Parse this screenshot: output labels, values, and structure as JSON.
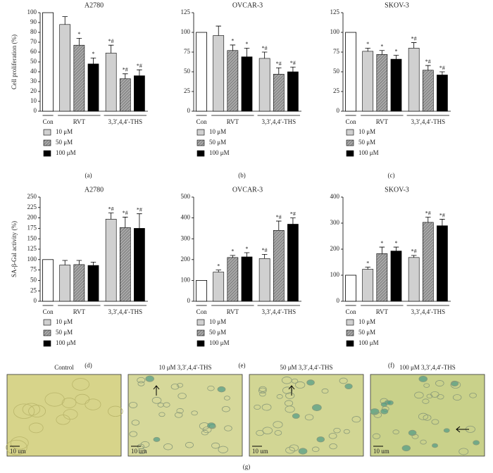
{
  "chart_data": [
    {
      "type": "bar",
      "title": "A2780",
      "ylabel": "Cell proliferation (%)",
      "panel_label": "(a)",
      "control": {
        "label": "Con",
        "value": 100,
        "color": "#ffffff"
      },
      "categories": [
        "RVT",
        "3,3′,4,4′-THS"
      ],
      "series": [
        {
          "name": "10 μM",
          "color": "#d0d0d0",
          "values": [
            88,
            59
          ],
          "errors": [
            8,
            8
          ],
          "significance": [
            null,
            "*#"
          ]
        },
        {
          "name": "50 μM",
          "color": "hatch",
          "values": [
            67,
            33
          ],
          "errors": [
            7,
            5
          ],
          "significance": [
            "*",
            "*#"
          ]
        },
        {
          "name": "100 μM",
          "color": "#000000",
          "values": [
            48,
            36
          ],
          "errors": [
            6,
            6
          ],
          "significance": [
            "*",
            "*#"
          ]
        }
      ],
      "ylim": [
        0,
        100
      ],
      "yticks": [
        0,
        10,
        20,
        30,
        40,
        50,
        60,
        70,
        80,
        90,
        100
      ]
    },
    {
      "type": "bar",
      "title": "OVCAR-3",
      "panel_label": "(b)",
      "control": {
        "label": "Con",
        "value": 100,
        "color": "#ffffff"
      },
      "categories": [
        "RVT",
        "3,3′,4,4′-THS"
      ],
      "series": [
        {
          "name": "10 μM",
          "color": "#d0d0d0",
          "values": [
            96,
            67
          ],
          "errors": [
            12,
            8
          ],
          "significance": [
            null,
            "*#"
          ]
        },
        {
          "name": "50 μM",
          "color": "hatch",
          "values": [
            77,
            47
          ],
          "errors": [
            7,
            8
          ],
          "significance": [
            "*",
            "*#"
          ]
        },
        {
          "name": "100 μM",
          "color": "#000000",
          "values": [
            69,
            50
          ],
          "errors": [
            11,
            6
          ],
          "significance": [
            "*",
            "*#"
          ]
        }
      ],
      "ylim": [
        0,
        125
      ],
      "yticks": [
        0,
        25,
        50,
        75,
        100,
        125
      ]
    },
    {
      "type": "bar",
      "title": "SKOV-3",
      "panel_label": "(c)",
      "control": {
        "label": "Con",
        "value": 100,
        "color": "#ffffff"
      },
      "categories": [
        "RVT",
        "3,3′,4,4′-THS"
      ],
      "series": [
        {
          "name": "10 μM",
          "color": "#d0d0d0",
          "values": [
            76,
            80
          ],
          "errors": [
            4,
            7
          ],
          "significance": [
            "*",
            "*#"
          ]
        },
        {
          "name": "50 μM",
          "color": "hatch",
          "values": [
            72,
            52
          ],
          "errors": [
            5,
            6
          ],
          "significance": [
            "*",
            "*#"
          ]
        },
        {
          "name": "100 μM",
          "color": "#000000",
          "values": [
            66,
            46
          ],
          "errors": [
            5,
            4
          ],
          "significance": [
            "*",
            "*#"
          ]
        }
      ],
      "ylim": [
        0,
        125
      ],
      "yticks": [
        0,
        25,
        50,
        75,
        100,
        125
      ]
    },
    {
      "type": "bar",
      "title": "A2780",
      "ylabel": "SA-β-Gal activity (%)",
      "panel_label": "(d)",
      "control": {
        "label": "Con",
        "value": 100,
        "color": "#ffffff"
      },
      "categories": [
        "RVT",
        "3,3′,4,4′-THS"
      ],
      "series": [
        {
          "name": "10 μM",
          "color": "#d0d0d0",
          "values": [
            87,
            197
          ],
          "errors": [
            11,
            15
          ],
          "significance": [
            null,
            "*#"
          ]
        },
        {
          "name": "50 μM",
          "color": "hatch",
          "values": [
            88,
            177
          ],
          "errors": [
            10,
            25
          ],
          "significance": [
            null,
            "*#"
          ]
        },
        {
          "name": "100 μM",
          "color": "#000000",
          "values": [
            86,
            175
          ],
          "errors": [
            8,
            35
          ],
          "significance": [
            null,
            "*#"
          ]
        }
      ],
      "ylim": [
        0,
        250
      ],
      "yticks": [
        0,
        25,
        50,
        75,
        100,
        125,
        150,
        175,
        200,
        225,
        250
      ]
    },
    {
      "type": "bar",
      "title": "OVCAR-3",
      "panel_label": "(e)",
      "control": {
        "label": "Con",
        "value": 100,
        "color": "#ffffff"
      },
      "categories": [
        "RVT",
        "3,3′,4,4′-THS"
      ],
      "series": [
        {
          "name": "10 μM",
          "color": "#d0d0d0",
          "values": [
            140,
            205
          ],
          "errors": [
            10,
            20
          ],
          "significance": [
            "*",
            "*#"
          ]
        },
        {
          "name": "50 μM",
          "color": "hatch",
          "values": [
            210,
            340
          ],
          "errors": [
            10,
            45
          ],
          "significance": [
            "*",
            "*#"
          ]
        },
        {
          "name": "100 μM",
          "color": "#000000",
          "values": [
            213,
            370
          ],
          "errors": [
            20,
            30
          ],
          "significance": [
            "*",
            "*#"
          ]
        }
      ],
      "ylim": [
        0,
        500
      ],
      "yticks": [
        0,
        100,
        200,
        300,
        400,
        500
      ]
    },
    {
      "type": "bar",
      "title": "SKOV-3",
      "panel_label": "(f)",
      "control": {
        "label": "Con",
        "value": 100,
        "color": "#ffffff"
      },
      "categories": [
        "RVT",
        "3,3′,4,4′-THS"
      ],
      "series": [
        {
          "name": "10 μM",
          "color": "#d0d0d0",
          "values": [
            123,
            168
          ],
          "errors": [
            8,
            8
          ],
          "significance": [
            "*",
            "*#"
          ]
        },
        {
          "name": "50 μM",
          "color": "hatch",
          "values": [
            183,
            303
          ],
          "errors": [
            25,
            20
          ],
          "significance": [
            "*",
            "*#"
          ]
        },
        {
          "name": "100 μM",
          "color": "#000000",
          "values": [
            193,
            290
          ],
          "errors": [
            15,
            25
          ],
          "significance": [
            "*",
            "*#"
          ]
        }
      ],
      "ylim": [
        0,
        400
      ],
      "yticks": [
        0,
        100,
        200,
        300,
        400
      ]
    }
  ],
  "micrographs": {
    "panel_label": "(g)",
    "images": [
      {
        "title": "Control",
        "scale": "10 um"
      },
      {
        "title": "10 μM 3,3′,4,4′-THS",
        "scale": "10 um"
      },
      {
        "title": "50 μM 3,3′,4,4′-THS",
        "scale": "10 um"
      },
      {
        "title": "100 μM 3,3′,4,4′-THS",
        "scale": "10 um"
      }
    ]
  }
}
